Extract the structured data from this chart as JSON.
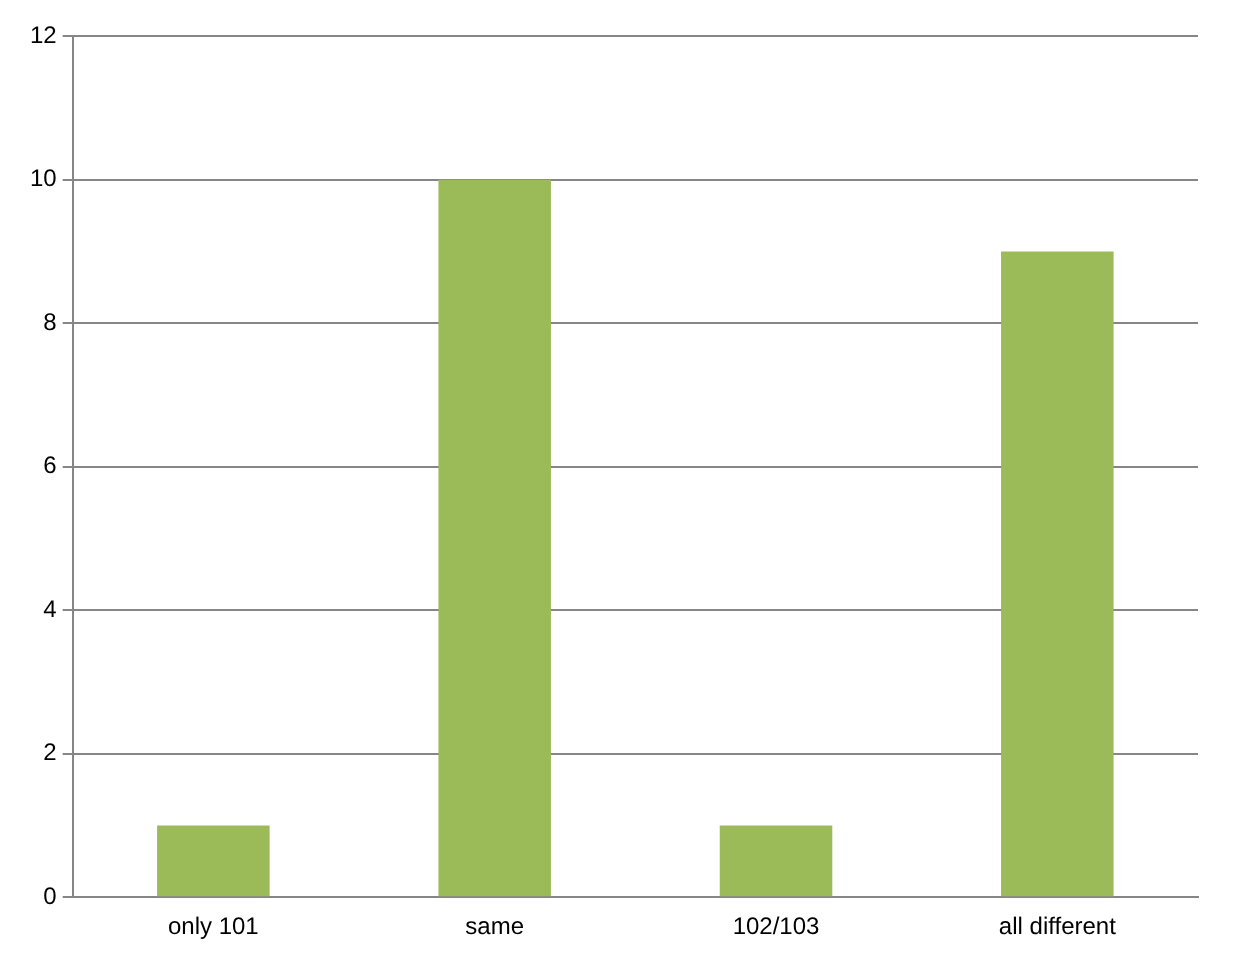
{
  "chart_data": {
    "type": "bar",
    "categories": [
      "only 101",
      "same",
      "102/103",
      "all different"
    ],
    "values": [
      1,
      10,
      1,
      9
    ],
    "color": "#9bbb59",
    "ylim": [
      0,
      12
    ],
    "yticks": [
      0,
      2,
      4,
      6,
      8,
      10,
      12
    ],
    "grid": "y",
    "legend": false
  }
}
